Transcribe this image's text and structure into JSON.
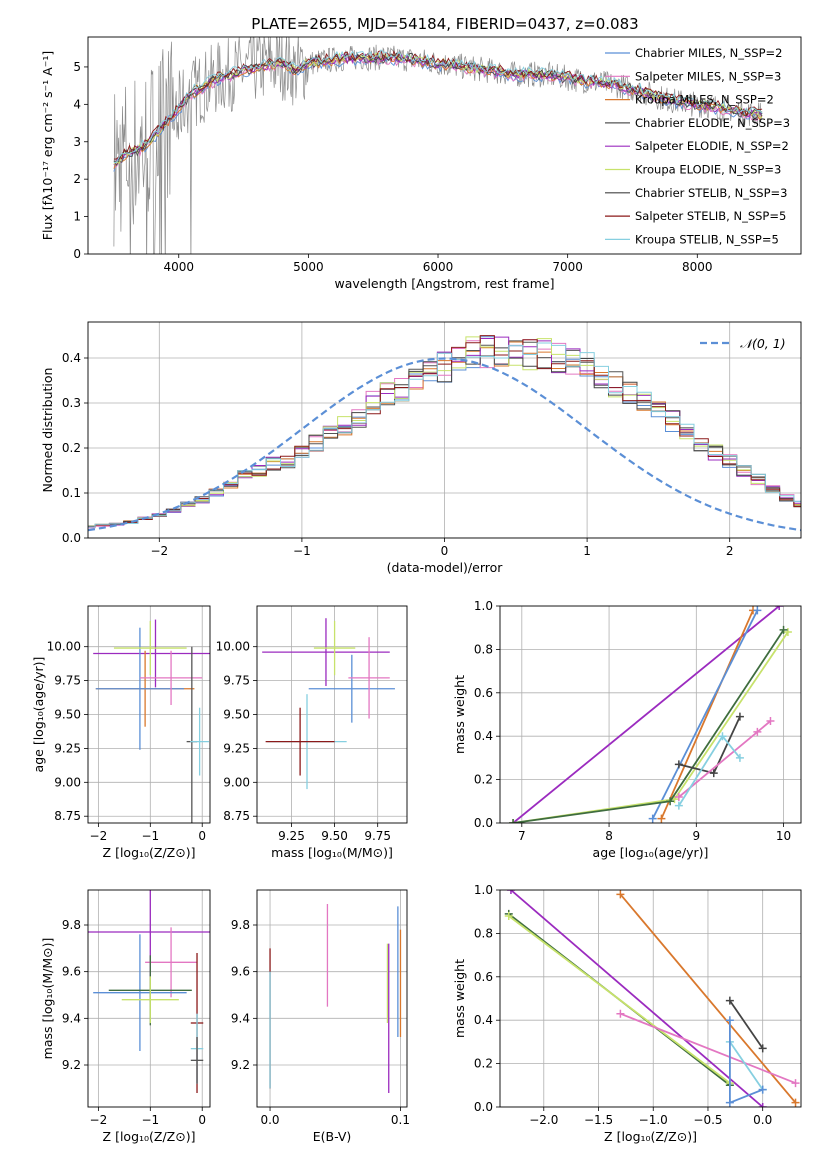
{
  "figure_title": "PLATE=2655, MJD=54184, FIBERID=0437, z=0.083",
  "colors": {
    "grid": "#b0b0b0",
    "series": [
      "#5b8fd6",
      "#e377c2",
      "#d9782d",
      "#555555",
      "#9b2bbf",
      "#c7e26b",
      "#444444",
      "#8b1a1a",
      "#86cfe0"
    ],
    "normal_line": "#5b8fd6"
  },
  "chart_data": [
    {
      "id": "spectrum",
      "type": "line",
      "title": "PLATE=2655, MJD=54184, FIBERID=0437, z=0.083",
      "xlabel": "wavelength [Angstrom, rest frame]",
      "ylabel": "Flux [fλ10⁻¹⁷ erg cm⁻² s⁻¹ A⁻¹]",
      "xlim": [
        3300,
        8800
      ],
      "ylim": [
        0,
        5.8
      ],
      "xticks": [
        4000,
        5000,
        6000,
        7000,
        8000
      ],
      "yticks": [
        0,
        1,
        2,
        3,
        4,
        5
      ],
      "legend_placement": "right",
      "legend": [
        {
          "label": "Chabrier MILES, N_SSP=2",
          "color": "#5b8fd6"
        },
        {
          "label": "Salpeter MILES, N_SSP=3",
          "color": "#e377c2"
        },
        {
          "label": "Kroupa MILES, N_SSP=2",
          "color": "#d9782d"
        },
        {
          "label": "Chabrier ELODIE, N_SSP=3",
          "color": "#555555"
        },
        {
          "label": "Salpeter ELODIE, N_SSP=2",
          "color": "#9b2bbf"
        },
        {
          "label": "Kroupa ELODIE, N_SSP=3",
          "color": "#c7e26b"
        },
        {
          "label": "Chabrier STELIB, N_SSP=3",
          "color": "#444444"
        },
        {
          "label": "Salpeter STELIB, N_SSP=5",
          "color": "#8b1a1a"
        },
        {
          "label": "Kroupa STELIB, N_SSP=5",
          "color": "#86cfe0"
        }
      ],
      "continuum": {
        "x": [
          3500,
          3600,
          3700,
          3800,
          3900,
          4000,
          4100,
          4200,
          4300,
          4400,
          4500,
          4600,
          4700,
          4800,
          4900,
          5000,
          5200,
          5400,
          5600,
          5800,
          6000,
          6200,
          6400,
          6600,
          6800,
          7000,
          7200,
          7400,
          7600,
          7800,
          8000,
          8200,
          8400
        ],
        "y": [
          2.4,
          2.7,
          2.8,
          3.1,
          3.5,
          3.9,
          4.3,
          4.5,
          4.7,
          4.8,
          4.9,
          5.0,
          5.05,
          5.1,
          4.9,
          5.1,
          5.2,
          5.25,
          5.25,
          5.2,
          5.1,
          5.0,
          4.9,
          4.8,
          4.8,
          4.7,
          4.6,
          4.5,
          4.3,
          4.1,
          4.0,
          3.9,
          3.75
        ]
      }
    },
    {
      "id": "residuals",
      "type": "histogram",
      "xlabel": "(data-model)/error",
      "ylabel": "Normed distribution",
      "xlim": [
        -2.5,
        2.5
      ],
      "ylim": [
        0,
        0.48
      ],
      "xticks": [
        -2,
        -1,
        0,
        1,
        2
      ],
      "yticks": [
        0.0,
        0.1,
        0.2,
        0.3,
        0.4
      ],
      "legend": [
        {
          "label": "𝒩(0, 1)",
          "color": "#5b8fd6"
        }
      ],
      "legend_placement": "top-right",
      "bin_width": 0.1,
      "hist_heights": [
        0.025,
        0.028,
        0.03,
        0.035,
        0.045,
        0.05,
        0.06,
        0.075,
        0.085,
        0.1,
        0.12,
        0.14,
        0.15,
        0.165,
        0.17,
        0.19,
        0.21,
        0.23,
        0.25,
        0.27,
        0.3,
        0.32,
        0.33,
        0.35,
        0.37,
        0.38,
        0.4,
        0.41,
        0.415,
        0.42,
        0.41,
        0.41,
        0.41,
        0.4,
        0.39,
        0.38,
        0.36,
        0.34,
        0.32,
        0.3,
        0.28,
        0.26,
        0.24,
        0.21,
        0.19,
        0.17,
        0.15,
        0.13,
        0.11,
        0.09,
        0.075
      ]
    },
    {
      "id": "age-vs-z",
      "type": "errorbar",
      "xlabel": "Z [log₁₀(Z/Z⊙)]",
      "ylabel": "age  [log₁₀(age/yr)]",
      "xlim": [
        -2.2,
        0.15
      ],
      "ylim": [
        8.7,
        10.3
      ],
      "xticks": [
        -2,
        -1,
        0
      ],
      "yticks": [
        8.75,
        9.0,
        9.25,
        9.5,
        9.75,
        10.0
      ],
      "points": [
        {
          "x": -0.9,
          "y": 9.95,
          "xerr": 1.2,
          "yerr": 0.25,
          "color": "#9b2bbf"
        },
        {
          "x": -1.1,
          "y": 9.69,
          "xerr": 0.95,
          "yerr": 0.28,
          "color": "#d9782d"
        },
        {
          "x": -1.2,
          "y": 9.69,
          "xerr": 0.85,
          "yerr": 0.45,
          "color": "#5b8fd6"
        },
        {
          "x": -1.0,
          "y": 9.99,
          "xerr": 0.7,
          "yerr": 0.2,
          "color": "#c7e26b"
        },
        {
          "x": -0.6,
          "y": 9.77,
          "xerr": 0.6,
          "yerr": 0.2,
          "color": "#e377c2"
        },
        {
          "x": -0.2,
          "y": 9.3,
          "xerr": 0.1,
          "yerr": 0.7,
          "color": "#555555"
        },
        {
          "x": -0.05,
          "y": 9.3,
          "xerr": 0.18,
          "yerr": 0.25,
          "color": "#86cfe0"
        }
      ]
    },
    {
      "id": "age-vs-mass",
      "type": "errorbar",
      "xlabel": "mass [log₁₀(M/M⊙)]",
      "ylabel": "",
      "xlim": [
        9.05,
        9.92
      ],
      "ylim": [
        8.7,
        10.3
      ],
      "xticks": [
        9.25,
        9.5,
        9.75
      ],
      "yticks": [
        8.75,
        9.0,
        9.25,
        9.5,
        9.75,
        10.0
      ],
      "points": [
        {
          "x": 9.45,
          "y": 9.96,
          "xerr": 0.37,
          "yerr": 0.25,
          "color": "#9b2bbf"
        },
        {
          "x": 9.6,
          "y": 9.69,
          "xerr": 0.25,
          "yerr": 0.25,
          "color": "#5b8fd6"
        },
        {
          "x": 9.34,
          "y": 9.3,
          "xerr": 0.23,
          "yerr": 0.35,
          "color": "#86cfe0"
        },
        {
          "x": 9.3,
          "y": 9.3,
          "xerr": 0.2,
          "yerr": 0.25,
          "color": "#8b1a1a"
        },
        {
          "x": 9.5,
          "y": 9.99,
          "xerr": 0.12,
          "yerr": 0.2,
          "color": "#c7e26b"
        },
        {
          "x": 9.7,
          "y": 9.77,
          "xerr": 0.12,
          "yerr": 0.3,
          "color": "#e377c2"
        }
      ]
    },
    {
      "id": "weight-vs-age",
      "type": "line",
      "xlabel": "age  [log₁₀(age/yr)]",
      "ylabel": "mass weight",
      "xlim": [
        6.75,
        10.2
      ],
      "ylim": [
        0,
        1.0
      ],
      "xticks": [
        7,
        8,
        9,
        10
      ],
      "yticks": [
        0.0,
        0.2,
        0.4,
        0.6,
        0.8,
        1.0
      ],
      "series": [
        {
          "color": "#9b2bbf",
          "x": [
            6.9,
            9.95
          ],
          "y": [
            0.0,
            1.0
          ]
        },
        {
          "color": "#d9782d",
          "x": [
            8.6,
            9.65
          ],
          "y": [
            0.02,
            0.98
          ]
        },
        {
          "color": "#5b8fd6",
          "x": [
            8.5,
            9.7
          ],
          "y": [
            0.02,
            0.98
          ]
        },
        {
          "color": "#c7e26b",
          "x": [
            6.9,
            8.75,
            10.05
          ],
          "y": [
            0.0,
            0.11,
            0.88
          ]
        },
        {
          "color": "#3f6d3f",
          "x": [
            6.9,
            8.7,
            10.0
          ],
          "y": [
            0.0,
            0.1,
            0.89
          ]
        },
        {
          "color": "#444444",
          "x": [
            8.8,
            9.2,
            9.5
          ],
          "y": [
            0.27,
            0.23,
            0.49
          ]
        },
        {
          "color": "#e377c2",
          "x": [
            8.8,
            9.7,
            9.85
          ],
          "y": [
            0.12,
            0.42,
            0.47
          ]
        },
        {
          "color": "#86cfe0",
          "x": [
            8.8,
            9.3,
            9.5
          ],
          "y": [
            0.08,
            0.4,
            0.3
          ]
        }
      ]
    },
    {
      "id": "mass-vs-z",
      "type": "errorbar",
      "xlabel": "Z [log₁₀(Z/Z⊙)]",
      "ylabel": "mass [log₁₀(M/M⊙)]",
      "xlim": [
        -2.2,
        0.15
      ],
      "ylim": [
        9.02,
        9.95
      ],
      "xticks": [
        -2,
        -1,
        0
      ],
      "yticks": [
        9.2,
        9.4,
        9.6,
        9.8
      ],
      "points": [
        {
          "x": -1.0,
          "y": 9.77,
          "xerr": 1.2,
          "yerr": 0.3,
          "color": "#9b2bbf"
        },
        {
          "x": -0.6,
          "y": 9.64,
          "xerr": 0.5,
          "yerr": 0.15,
          "color": "#e377c2"
        },
        {
          "x": -1.2,
          "y": 9.51,
          "xerr": 0.9,
          "yerr": 0.25,
          "color": "#5b8fd6"
        },
        {
          "x": -1.0,
          "y": 9.52,
          "xerr": 0.8,
          "yerr": 0.15,
          "color": "#3f6d3f"
        },
        {
          "x": -1.0,
          "y": 9.48,
          "xerr": 0.55,
          "yerr": 0.1,
          "color": "#c7e26b"
        },
        {
          "x": -0.1,
          "y": 9.38,
          "xerr": 0.12,
          "yerr": 0.3,
          "color": "#8b1a1a"
        },
        {
          "x": -0.1,
          "y": 9.27,
          "xerr": 0.12,
          "yerr": 0.15,
          "color": "#86cfe0"
        },
        {
          "x": -0.1,
          "y": 9.22,
          "xerr": 0.12,
          "yerr": 0.1,
          "color": "#555555"
        }
      ]
    },
    {
      "id": "mass-vs-ebv",
      "type": "errorbar",
      "xlabel": "E(B-V)",
      "ylabel": "",
      "xlim": [
        -0.01,
        0.105
      ],
      "ylim": [
        9.02,
        9.95
      ],
      "xticks": [
        0.0,
        0.1
      ],
      "yticks": [
        9.2,
        9.4,
        9.6,
        9.8
      ],
      "points": [
        {
          "x": 0.0,
          "y": 9.4,
          "xerr": 0,
          "yerr": 0.3,
          "color": "#8b1a1a"
        },
        {
          "x": 0.0,
          "y": 9.35,
          "xerr": 0,
          "yerr": 0.25,
          "color": "#86cfe0"
        },
        {
          "x": 0.044,
          "y": 9.67,
          "xerr": 0,
          "yerr": 0.22,
          "color": "#e377c2"
        },
        {
          "x": 0.09,
          "y": 9.55,
          "xerr": 0,
          "yerr": 0.17,
          "color": "#c7e26b"
        },
        {
          "x": 0.091,
          "y": 9.4,
          "xerr": 0,
          "yerr": 0.32,
          "color": "#9b2bbf"
        },
        {
          "x": 0.098,
          "y": 9.6,
          "xerr": 0,
          "yerr": 0.28,
          "color": "#5b8fd6"
        },
        {
          "x": 0.1,
          "y": 9.55,
          "xerr": 0,
          "yerr": 0.23,
          "color": "#d9782d"
        }
      ]
    },
    {
      "id": "weight-vs-z",
      "type": "line",
      "xlabel": "Z [log₁₀(Z/Z⊙)]",
      "ylabel": "mass weight",
      "xlim": [
        -2.4,
        0.35
      ],
      "ylim": [
        0,
        1.0
      ],
      "xticks": [
        -2.0,
        -1.5,
        -1.0,
        -0.5,
        0.0
      ],
      "yticks": [
        0.0,
        0.2,
        0.4,
        0.6,
        0.8,
        1.0
      ],
      "series": [
        {
          "color": "#9b2bbf",
          "x": [
            -2.3,
            0.0
          ],
          "y": [
            1.0,
            0.0
          ]
        },
        {
          "color": "#d9782d",
          "x": [
            -1.3,
            0.3
          ],
          "y": [
            0.98,
            0.02
          ]
        },
        {
          "color": "#3f6d3f",
          "x": [
            -2.32,
            -0.3
          ],
          "y": [
            0.89,
            0.1
          ]
        },
        {
          "color": "#c7e26b",
          "x": [
            -2.32,
            -0.3
          ],
          "y": [
            0.88,
            0.11
          ]
        },
        {
          "color": "#444444",
          "x": [
            -0.3,
            0.0
          ],
          "y": [
            0.49,
            0.27
          ]
        },
        {
          "color": "#e377c2",
          "x": [
            -1.3,
            0.3
          ],
          "y": [
            0.43,
            0.11
          ]
        },
        {
          "color": "#86cfe0",
          "x": [
            -0.3,
            0.0
          ],
          "y": [
            0.3,
            0.08
          ]
        },
        {
          "color": "#5b8fd6",
          "x": [
            -0.3,
            -0.3,
            0.0
          ],
          "y": [
            0.4,
            0.02,
            0.08
          ]
        }
      ]
    }
  ]
}
